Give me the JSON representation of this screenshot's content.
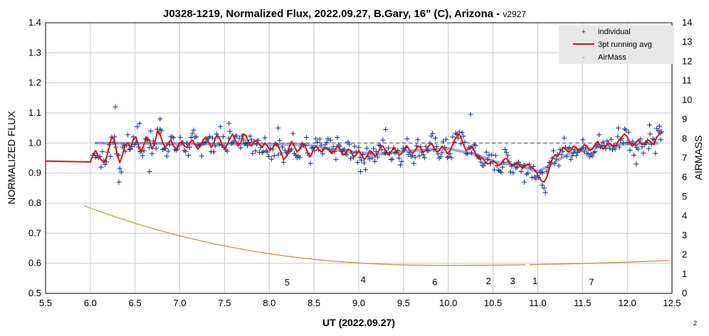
{
  "chart_data": {
    "type": "scatter",
    "title": "J0328-1219, Normalized Flux, 2022.09.27, B.Gary, 16\" (C), Arizona - ",
    "title_version": "v2927",
    "xlabel": "UT (2022.09.27)",
    "ylabel": "NORMALIZED FLUX",
    "y2label": "AIRMASS",
    "xlim": [
      5.5,
      12.5
    ],
    "ylim": [
      0.5,
      1.4
    ],
    "y2lim": [
      0,
      14
    ],
    "x_ticks": [
      "5.5",
      "6.0",
      "6.5",
      "7.0",
      "7.5",
      "8.0",
      "8.5",
      "9.0",
      "9.5",
      "10.0",
      "10.5",
      "11.0",
      "11.5",
      "12.0",
      "12.5"
    ],
    "y_ticks": [
      "0.5",
      "0.6",
      "0.7",
      "0.8",
      "0.9",
      "1.0",
      "1.1",
      "1.2",
      "1.3",
      "1.4"
    ],
    "y2_ticks": [
      "0",
      "1",
      "2",
      "3",
      "4",
      "5",
      "6",
      "7",
      "8",
      "9",
      "10",
      "11",
      "12",
      "13",
      "14"
    ],
    "grid": true,
    "legend_position": "top-right",
    "legend": [
      {
        "label": "individual",
        "marker": "+",
        "color": "#1f3f8f"
      },
      {
        "label": "3pt running avg",
        "marker": "line",
        "color": "#e01010"
      },
      {
        "label": "AirMass",
        "marker": "-",
        "color": "#e07020"
      }
    ],
    "colors": {
      "individual": "#1f3f8f",
      "running_avg": "#e01010",
      "model": "#6f88d8",
      "reference": "#777777",
      "airmass": "#b8843a"
    },
    "reference_line": {
      "y": 1.0,
      "x_range": [
        6.05,
        12.35
      ]
    },
    "smooth_model": [
      [
        6.05,
        1.0
      ],
      [
        8.4,
        0.995
      ],
      [
        8.8,
        0.975
      ],
      [
        9.2,
        0.962
      ],
      [
        9.6,
        0.975
      ],
      [
        10.0,
        0.982
      ],
      [
        10.3,
        0.962
      ],
      [
        10.55,
        0.935
      ],
      [
        10.8,
        0.925
      ],
      [
        11.0,
        0.905
      ],
      [
        11.1,
        0.92
      ],
      [
        11.35,
        0.965
      ],
      [
        11.6,
        0.982
      ],
      [
        11.9,
        0.995
      ],
      [
        12.35,
        1.0
      ]
    ],
    "running_avg_prefix": [
      [
        5.5,
        0.94
      ],
      [
        6.0,
        0.937
      ]
    ],
    "running_avg": [
      [
        6.03,
        0.96
      ],
      [
        6.06,
        0.975
      ],
      [
        6.09,
        0.955
      ],
      [
        6.12,
        0.945
      ],
      [
        6.15,
        0.935
      ],
      [
        6.18,
        0.95
      ],
      [
        6.21,
        0.985
      ],
      [
        6.24,
        1.02
      ],
      [
        6.27,
        1.01
      ],
      [
        6.3,
        0.96
      ],
      [
        6.33,
        0.935
      ],
      [
        6.36,
        0.96
      ],
      [
        6.39,
        0.995
      ],
      [
        6.42,
        1.0
      ],
      [
        6.45,
        0.985
      ],
      [
        6.48,
        1.01
      ],
      [
        6.51,
        1.02
      ],
      [
        6.54,
        0.99
      ],
      [
        6.57,
        0.97
      ],
      [
        6.6,
        0.995
      ],
      [
        6.63,
        1.02
      ],
      [
        6.66,
        1.01
      ],
      [
        6.69,
        0.98
      ],
      [
        6.72,
        1.0
      ],
      [
        6.75,
        1.04
      ],
      [
        6.78,
        1.03
      ],
      [
        6.81,
        1.0
      ],
      [
        6.84,
        0.985
      ],
      [
        6.87,
        1.0
      ],
      [
        6.9,
        1.01
      ],
      [
        6.93,
        0.99
      ],
      [
        6.96,
        0.98
      ],
      [
        6.99,
        0.995
      ],
      [
        7.02,
        1.005
      ],
      [
        7.05,
        0.99
      ],
      [
        7.08,
        0.985
      ],
      [
        7.11,
        1.0
      ],
      [
        7.14,
        1.01
      ],
      [
        7.17,
        0.995
      ],
      [
        7.2,
        0.98
      ],
      [
        7.23,
        0.99
      ],
      [
        7.26,
        1.01
      ],
      [
        7.29,
        1.02
      ],
      [
        7.32,
        1.005
      ],
      [
        7.35,
        0.985
      ],
      [
        7.38,
        1.0
      ],
      [
        7.41,
        1.025
      ],
      [
        7.44,
        1.02
      ],
      [
        7.47,
        0.995
      ],
      [
        7.5,
        0.98
      ],
      [
        7.53,
        0.995
      ],
      [
        7.56,
        1.015
      ],
      [
        7.59,
        1.03
      ],
      [
        7.62,
        1.01
      ],
      [
        7.65,
        0.99
      ],
      [
        7.68,
        1.0
      ],
      [
        7.71,
        1.03
      ],
      [
        7.74,
        1.025
      ],
      [
        7.77,
        1.0
      ],
      [
        7.8,
        0.99
      ],
      [
        7.83,
        1.005
      ],
      [
        7.86,
        1.01
      ],
      [
        7.89,
        0.995
      ],
      [
        7.92,
        0.985
      ],
      [
        7.95,
        1.0
      ],
      [
        7.98,
        0.99
      ],
      [
        8.01,
        0.975
      ],
      [
        8.04,
        0.985
      ],
      [
        8.07,
        1.0
      ],
      [
        8.1,
        0.99
      ],
      [
        8.13,
        0.97
      ],
      [
        8.16,
        0.945
      ],
      [
        8.19,
        0.955
      ],
      [
        8.22,
        0.985
      ],
      [
        8.25,
        1.005
      ],
      [
        8.28,
        0.99
      ],
      [
        8.31,
        0.97
      ],
      [
        8.34,
        0.98
      ],
      [
        8.37,
        1.0
      ],
      [
        8.4,
        0.99
      ],
      [
        8.43,
        0.965
      ],
      [
        8.46,
        0.955
      ],
      [
        8.49,
        0.975
      ],
      [
        8.52,
        0.99
      ],
      [
        8.55,
        0.98
      ],
      [
        8.58,
        0.97
      ],
      [
        8.61,
        0.98
      ],
      [
        8.64,
        0.985
      ],
      [
        8.67,
        0.975
      ],
      [
        8.7,
        0.965
      ],
      [
        8.73,
        0.975
      ],
      [
        8.76,
        0.99
      ],
      [
        8.79,
        0.98
      ],
      [
        8.82,
        0.96
      ],
      [
        8.85,
        0.965
      ],
      [
        8.88,
        0.98
      ],
      [
        8.91,
        0.975
      ],
      [
        8.94,
        0.955
      ],
      [
        8.97,
        0.96
      ],
      [
        9.0,
        0.975
      ],
      [
        9.03,
        0.96
      ],
      [
        9.06,
        0.945
      ],
      [
        9.09,
        0.955
      ],
      [
        9.12,
        0.975
      ],
      [
        9.15,
        0.97
      ],
      [
        9.18,
        0.955
      ],
      [
        9.21,
        0.965
      ],
      [
        9.24,
        0.985
      ],
      [
        9.27,
        0.99
      ],
      [
        9.3,
        0.975
      ],
      [
        9.33,
        0.96
      ],
      [
        9.36,
        0.97
      ],
      [
        9.39,
        0.985
      ],
      [
        9.42,
        0.975
      ],
      [
        9.45,
        0.96
      ],
      [
        9.48,
        0.965
      ],
      [
        9.51,
        0.98
      ],
      [
        9.54,
        0.99
      ],
      [
        9.57,
        0.975
      ],
      [
        9.6,
        0.965
      ],
      [
        9.63,
        0.975
      ],
      [
        9.66,
        0.99
      ],
      [
        9.69,
        0.985
      ],
      [
        9.72,
        0.97
      ],
      [
        9.75,
        0.975
      ],
      [
        9.78,
        0.99
      ],
      [
        9.81,
        1.0
      ],
      [
        9.84,
        0.985
      ],
      [
        9.87,
        0.97
      ],
      [
        9.9,
        0.975
      ],
      [
        9.93,
        0.99
      ],
      [
        9.96,
        0.98
      ],
      [
        9.99,
        0.965
      ],
      [
        10.02,
        0.975
      ],
      [
        10.05,
        0.995
      ],
      [
        10.08,
        1.015
      ],
      [
        10.11,
        1.03
      ],
      [
        10.14,
        1.02
      ],
      [
        10.17,
        0.995
      ],
      [
        10.2,
        0.975
      ],
      [
        10.23,
        0.98
      ],
      [
        10.26,
        0.99
      ],
      [
        10.29,
        0.975
      ],
      [
        10.32,
        0.955
      ],
      [
        10.35,
        0.945
      ],
      [
        10.38,
        0.95
      ],
      [
        10.41,
        0.94
      ],
      [
        10.44,
        0.93
      ],
      [
        10.47,
        0.935
      ],
      [
        10.5,
        0.94
      ],
      [
        10.53,
        0.935
      ],
      [
        10.56,
        0.925
      ],
      [
        10.59,
        0.93
      ],
      [
        10.62,
        0.945
      ],
      [
        10.65,
        0.95
      ],
      [
        10.68,
        0.935
      ],
      [
        10.71,
        0.925
      ],
      [
        10.74,
        0.93
      ],
      [
        10.77,
        0.935
      ],
      [
        10.8,
        0.925
      ],
      [
        10.83,
        0.915
      ],
      [
        10.86,
        0.925
      ],
      [
        10.89,
        0.93
      ],
      [
        10.92,
        0.92
      ],
      [
        10.95,
        0.915
      ],
      [
        10.98,
        0.905
      ],
      [
        11.01,
        0.89
      ],
      [
        11.04,
        0.875
      ],
      [
        11.07,
        0.87
      ],
      [
        11.1,
        0.885
      ],
      [
        11.13,
        0.915
      ],
      [
        11.16,
        0.945
      ],
      [
        11.19,
        0.96
      ],
      [
        11.22,
        0.955
      ],
      [
        11.25,
        0.97
      ],
      [
        11.28,
        0.985
      ],
      [
        11.31,
        0.98
      ],
      [
        11.34,
        0.97
      ],
      [
        11.37,
        0.975
      ],
      [
        11.4,
        0.99
      ],
      [
        11.43,
        0.985
      ],
      [
        11.46,
        0.975
      ],
      [
        11.49,
        0.98
      ],
      [
        11.52,
        0.995
      ],
      [
        11.55,
        0.99
      ],
      [
        11.58,
        0.975
      ],
      [
        11.61,
        0.98
      ],
      [
        11.64,
        0.995
      ],
      [
        11.67,
        1.005
      ],
      [
        11.7,
        0.99
      ],
      [
        11.73,
        0.98
      ],
      [
        11.76,
        0.99
      ],
      [
        11.79,
        1.0
      ],
      [
        11.82,
        0.995
      ],
      [
        11.85,
        0.985
      ],
      [
        11.88,
        0.995
      ],
      [
        11.91,
        1.01
      ],
      [
        11.94,
        1.02
      ],
      [
        11.97,
        1.03
      ],
      [
        12.0,
        1.02
      ],
      [
        12.03,
        1.0
      ],
      [
        12.06,
        0.99
      ],
      [
        12.09,
        1.0
      ],
      [
        12.12,
        1.01
      ],
      [
        12.15,
        1.0
      ],
      [
        12.18,
        0.995
      ],
      [
        12.21,
        1.005
      ],
      [
        12.24,
        1.01
      ],
      [
        12.27,
        1.0
      ],
      [
        12.3,
        0.995
      ],
      [
        12.33,
        1.02
      ],
      [
        12.36,
        1.03
      ],
      [
        12.37,
        1.045
      ]
    ],
    "individual_outliers": [
      [
        6.28,
        1.12
      ],
      [
        6.32,
        0.87
      ],
      [
        6.55,
        1.065
      ],
      [
        6.66,
        0.905
      ],
      [
        6.78,
        1.08
      ],
      [
        7.55,
        1.065
      ],
      [
        8.1,
        1.05
      ],
      [
        9.02,
        0.905
      ],
      [
        9.3,
        1.045
      ],
      [
        10.25,
        1.095
      ],
      [
        10.85,
        0.87
      ],
      [
        11.05,
        0.86
      ],
      [
        11.9,
        1.05
      ],
      [
        12.1,
        0.93
      ],
      [
        12.25,
        1.06
      ]
    ],
    "airmass": {
      "x_range": [
        5.95,
        12.45
      ],
      "min_value": 1.45,
      "min_x": 10.0,
      "start_value": 4.5,
      "end_value": 1.7
    },
    "annotations": [
      {
        "text": "5",
        "x": 8.2,
        "y": 0.535
      },
      {
        "text": "4",
        "x": 9.05,
        "y": 0.545
      },
      {
        "text": "6",
        "x": 9.85,
        "y": 0.537
      },
      {
        "text": "2",
        "x": 10.45,
        "y": 0.54
      },
      {
        "text": "3",
        "x": 10.72,
        "y": 0.54
      },
      {
        "text": "1",
        "x": 10.97,
        "y": 0.54
      },
      {
        "text": "7",
        "x": 11.6,
        "y": 0.537
      }
    ]
  },
  "corner_label": "2"
}
